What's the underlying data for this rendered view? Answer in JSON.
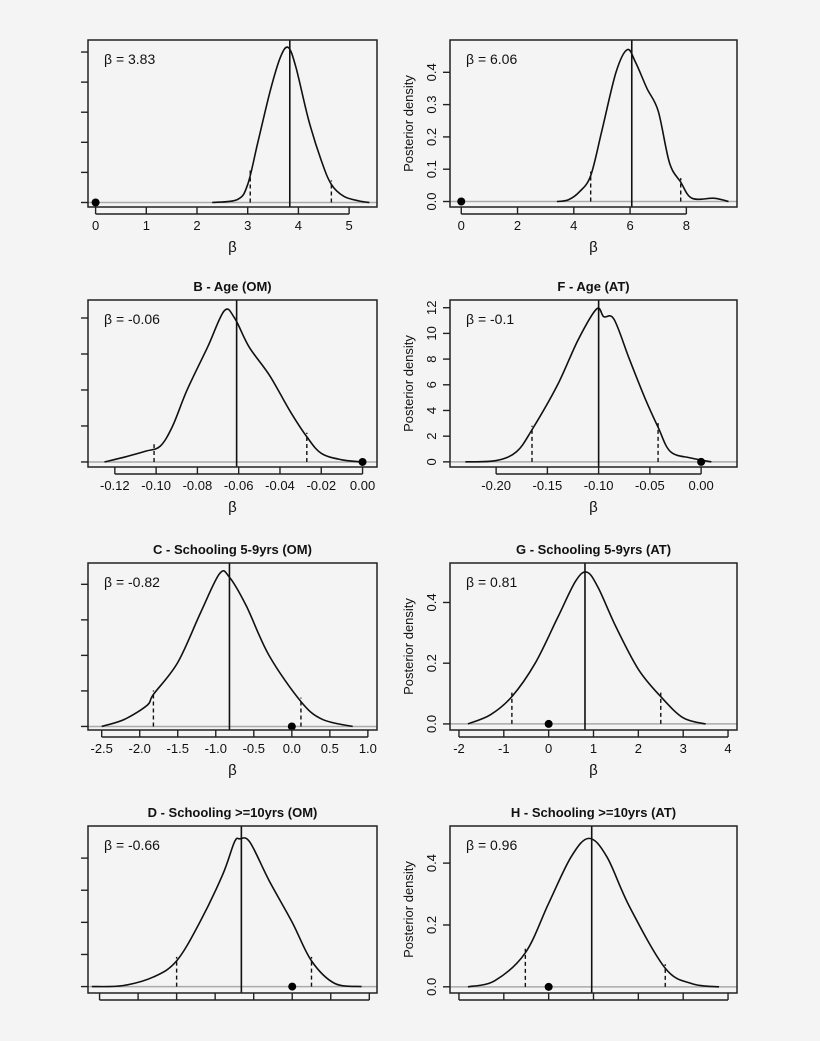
{
  "chart_data": [
    {
      "id": "A",
      "type": "line",
      "title": "",
      "ylabel": "",
      "xlabel": "β",
      "annotation": "β = 3.83",
      "mean": 3.83,
      "ci": [
        3.05,
        4.65
      ],
      "null_point": 0,
      "xlim": [
        -0.15,
        5.55
      ],
      "ylim": [
        -0.03,
        1.08
      ],
      "xticks": [
        0,
        1,
        2,
        3,
        4,
        5
      ],
      "xtick_labels": [
        "0",
        "1",
        "2",
        "3",
        "4",
        "5"
      ],
      "yticks": [
        0,
        0.2,
        0.4,
        0.6,
        0.8,
        1.0
      ],
      "ytick_labels": [],
      "x": [
        2.3,
        2.8,
        3.0,
        3.2,
        3.45,
        3.65,
        3.8,
        3.95,
        4.2,
        4.45,
        4.65,
        4.9,
        5.2,
        5.4
      ],
      "y": [
        0,
        0.02,
        0.12,
        0.4,
        0.75,
        0.97,
        1.03,
        0.9,
        0.55,
        0.28,
        0.12,
        0.04,
        0.01,
        0
      ]
    },
    {
      "id": "E",
      "type": "line",
      "title": "",
      "ylabel": "Posterior density",
      "xlabel": "β",
      "annotation": "β = 6.06",
      "mean": 6.06,
      "ci": [
        4.6,
        7.8
      ],
      "null_point": 0,
      "xlim": [
        -0.4,
        9.8
      ],
      "ylim": [
        -0.017,
        0.5
      ],
      "xticks": [
        0,
        2,
        4,
        6,
        8
      ],
      "xtick_labels": [
        "0",
        "2",
        "4",
        "6",
        "8"
      ],
      "yticks": [
        0,
        0.1,
        0.2,
        0.3,
        0.4
      ],
      "ytick_labels": [
        "0.0",
        "0.1",
        "0.2",
        "0.3",
        "0.4"
      ],
      "x": [
        3.4,
        3.8,
        4.2,
        4.6,
        5.0,
        5.5,
        5.9,
        6.2,
        6.6,
        7.0,
        7.4,
        7.8,
        8.2,
        9.0,
        9.5
      ],
      "y": [
        0,
        0.005,
        0.03,
        0.08,
        0.22,
        0.4,
        0.47,
        0.43,
        0.35,
        0.28,
        0.12,
        0.06,
        0.01,
        0.01,
        0
      ]
    },
    {
      "id": "B",
      "type": "line",
      "title": "B - Age (OM)",
      "ylabel": "",
      "xlabel": "β",
      "annotation": "β = -0.06",
      "mean": -0.061,
      "ci": [
        -0.101,
        -0.027
      ],
      "null_point": 0,
      "xlim": [
        -0.133,
        0.007
      ],
      "ylim": [
        -0.7,
        22.5
      ],
      "xticks": [
        -0.12,
        -0.1,
        -0.08,
        -0.06,
        -0.04,
        -0.02,
        0.0
      ],
      "xtick_labels": [
        "-0.12",
        "-0.10",
        "-0.08",
        "-0.06",
        "-0.04",
        "-0.02",
        "0.00"
      ],
      "yticks": [
        0,
        5,
        10,
        15,
        20
      ],
      "ytick_labels": [],
      "x": [
        -0.125,
        -0.115,
        -0.105,
        -0.098,
        -0.092,
        -0.085,
        -0.075,
        -0.067,
        -0.062,
        -0.055,
        -0.045,
        -0.035,
        -0.027,
        -0.02,
        -0.01,
        0
      ],
      "y": [
        0,
        0.7,
        1.5,
        2.2,
        5,
        10,
        16,
        21,
        20,
        16,
        12,
        7,
        3.5,
        1.2,
        0.3,
        0
      ]
    },
    {
      "id": "F",
      "type": "line",
      "title": "F - Age (AT)",
      "ylabel": "Posterior density",
      "xlabel": "β",
      "annotation": "β = -0.1",
      "mean": -0.1,
      "ci": [
        -0.165,
        -0.042
      ],
      "null_point": 0,
      "xlim": [
        -0.245,
        0.035
      ],
      "ylim": [
        -0.4,
        12.6
      ],
      "xticks": [
        -0.2,
        -0.15,
        -0.1,
        -0.05,
        0.0
      ],
      "xtick_labels": [
        "-0.20",
        "-0.15",
        "-0.10",
        "-0.05",
        "0.00"
      ],
      "yticks": [
        0,
        2,
        4,
        6,
        8,
        10,
        12
      ],
      "ytick_labels": [
        "0",
        "2",
        "4",
        "6",
        "8",
        "10",
        "12"
      ],
      "x": [
        -0.23,
        -0.2,
        -0.18,
        -0.165,
        -0.14,
        -0.12,
        -0.102,
        -0.095,
        -0.085,
        -0.07,
        -0.055,
        -0.042,
        -0.03,
        -0.01,
        0.01
      ],
      "y": [
        0,
        0.1,
        0.8,
        2.5,
        6,
        9.5,
        11.9,
        11.3,
        11.1,
        8,
        5,
        2.7,
        0.8,
        0.3,
        0
      ]
    },
    {
      "id": "C",
      "type": "line",
      "title": "C - Schooling 5-9yrs (OM)",
      "ylabel": "",
      "xlabel": "β",
      "annotation": "β = -0.82",
      "mean": -0.82,
      "ci": [
        -1.82,
        0.12
      ],
      "null_point": 0,
      "xlim": [
        -2.68,
        1.12
      ],
      "ylim": [
        -0.01,
        0.46
      ],
      "xticks": [
        -2.5,
        -2.0,
        -1.5,
        -1.0,
        -0.5,
        0.0,
        0.5,
        1.0
      ],
      "xtick_labels": [
        "-2.5",
        "-2.0",
        "-1.5",
        "-1.0",
        "-0.5",
        "0.0",
        "0.5",
        "1.0"
      ],
      "yticks": [
        0,
        0.1,
        0.2,
        0.3,
        0.4
      ],
      "ytick_labels": [],
      "x": [
        -2.5,
        -2.2,
        -1.9,
        -1.82,
        -1.5,
        -1.2,
        -0.95,
        -0.82,
        -0.6,
        -0.3,
        0.12,
        0.4,
        0.8
      ],
      "y": [
        0,
        0.02,
        0.06,
        0.09,
        0.18,
        0.32,
        0.43,
        0.42,
        0.34,
        0.2,
        0.07,
        0.02,
        0
      ]
    },
    {
      "id": "G",
      "type": "line",
      "title": "G - Schooling 5-9yrs (AT)",
      "ylabel": "Posterior density",
      "xlabel": "β",
      "annotation": "β = 0.81",
      "mean": 0.81,
      "ci": [
        -0.82,
        2.5
      ],
      "null_point": 0,
      "xlim": [
        -2.2,
        4.2
      ],
      "ylim": [
        -0.02,
        0.53
      ],
      "xticks": [
        -2,
        -1,
        0,
        1,
        2,
        3,
        4
      ],
      "xtick_labels": [
        "-2",
        "-1",
        "0",
        "1",
        "2",
        "3",
        "4"
      ],
      "yticks": [
        0,
        0.2,
        0.4
      ],
      "ytick_labels": [
        "0.0",
        "0.2",
        "0.4"
      ],
      "x": [
        -1.8,
        -1.3,
        -0.82,
        -0.3,
        0.2,
        0.6,
        0.85,
        1.1,
        1.5,
        2.0,
        2.5,
        3.0,
        3.5
      ],
      "y": [
        0,
        0.03,
        0.09,
        0.2,
        0.35,
        0.47,
        0.5,
        0.45,
        0.32,
        0.18,
        0.09,
        0.02,
        0
      ]
    },
    {
      "id": "D",
      "type": "line",
      "title": "D - Schooling >=10yrs (OM)",
      "ylabel": "",
      "xlabel": "",
      "annotation": "β = -0.66",
      "mean": -0.66,
      "ci": [
        -1.5,
        0.25
      ],
      "null_point": 0,
      "xlim": [
        -2.65,
        1.1
      ],
      "ylim": [
        -0.02,
        0.5
      ],
      "xticks": [
        -2.5,
        -2.0,
        -1.5,
        -1.0,
        -0.5,
        0.0,
        0.5,
        1.0
      ],
      "xtick_labels": [],
      "yticks": [
        0,
        0.1,
        0.2,
        0.3,
        0.4
      ],
      "ytick_labels": [],
      "x": [
        -2.6,
        -2.2,
        -1.8,
        -1.5,
        -1.2,
        -0.9,
        -0.75,
        -0.68,
        -0.55,
        -0.3,
        0,
        0.25,
        0.55,
        0.9
      ],
      "y": [
        0,
        0.003,
        0.03,
        0.08,
        0.2,
        0.35,
        0.45,
        0.46,
        0.45,
        0.33,
        0.2,
        0.08,
        0.01,
        0
      ]
    },
    {
      "id": "H",
      "type": "line",
      "title": "H - Schooling >=10yrs (AT)",
      "ylabel": "Posterior density",
      "xlabel": "",
      "annotation": "β = 0.96",
      "mean": 0.96,
      "ci": [
        -0.52,
        2.6
      ],
      "null_point": 0,
      "xlim": [
        -2.2,
        4.2
      ],
      "ylim": [
        -0.02,
        0.52
      ],
      "xticks": [
        -2,
        -1,
        0,
        1,
        2,
        3,
        4
      ],
      "xtick_labels": [],
      "yticks": [
        0,
        0.2,
        0.4
      ],
      "ytick_labels": [
        "0.0",
        "0.2",
        "0.4"
      ],
      "x": [
        -1.8,
        -1.2,
        -0.52,
        0,
        0.5,
        0.9,
        1.3,
        1.8,
        2.6,
        3.2,
        3.8
      ],
      "y": [
        0,
        0.02,
        0.11,
        0.27,
        0.42,
        0.48,
        0.42,
        0.26,
        0.06,
        0.01,
        0
      ]
    }
  ]
}
